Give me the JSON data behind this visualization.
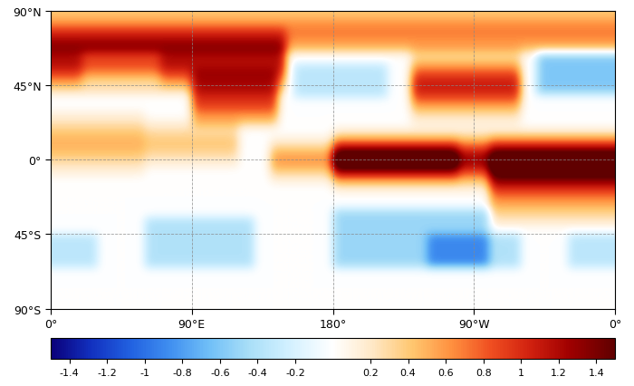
{
  "title": "",
  "colorbar_ticks": [
    -1.4,
    -1.2,
    -1.0,
    -0.8,
    -0.6,
    -0.4,
    -0.2,
    0.2,
    0.4,
    0.6,
    0.8,
    1.0,
    1.2,
    1.4
  ],
  "colorbar_tick_labels": [
    "-1.4",
    "-1.2",
    "-1",
    "-0.8",
    "-0.6",
    "-0.4",
    "-0.2",
    "0.2",
    "0.4",
    "0.6",
    "0.8",
    "1",
    "1.2",
    "1.4"
  ],
  "vmin": -1.5,
  "vmax": 1.5,
  "background_color": "#ffffff",
  "grid_color": "#888888",
  "coastline_color": "#000000",
  "cmap_nodes": [
    [
      0.0,
      [
        0.04,
        0.0,
        0.48
      ]
    ],
    [
      0.07,
      [
        0.07,
        0.19,
        0.75
      ]
    ],
    [
      0.14,
      [
        0.13,
        0.38,
        0.88
      ]
    ],
    [
      0.21,
      [
        0.25,
        0.56,
        0.94
      ]
    ],
    [
      0.28,
      [
        0.44,
        0.75,
        0.97
      ]
    ],
    [
      0.35,
      [
        0.66,
        0.87,
        0.97
      ]
    ],
    [
      0.42,
      [
        0.82,
        0.94,
        1.0
      ]
    ],
    [
      0.5,
      [
        1.0,
        1.0,
        1.0
      ]
    ],
    [
      0.57,
      [
        1.0,
        0.91,
        0.78
      ]
    ],
    [
      0.64,
      [
        1.0,
        0.78,
        0.44
      ]
    ],
    [
      0.71,
      [
        1.0,
        0.57,
        0.25
      ]
    ],
    [
      0.78,
      [
        0.94,
        0.31,
        0.13
      ]
    ],
    [
      0.85,
      [
        0.82,
        0.13,
        0.06
      ]
    ],
    [
      0.92,
      [
        0.63,
        0.0,
        0.0
      ]
    ],
    [
      1.0,
      [
        0.38,
        0.0,
        0.0
      ]
    ]
  ],
  "warm_patches": [
    {
      "lon_min": 180,
      "lon_max": 360,
      "lat_min": -20,
      "lat_max": 20,
      "strength": 1.3,
      "lat_sigma": 12
    },
    {
      "lon_min": 140,
      "lon_max": 260,
      "lat_min": -15,
      "lat_max": 15,
      "strength": 0.6,
      "lat_sigma": 10
    },
    {
      "lon_min": 230,
      "lon_max": 300,
      "lat_min": 20,
      "lat_max": 70,
      "strength": 1.1,
      "lat_sigma": 15
    },
    {
      "lon_min": 280,
      "lon_max": 360,
      "lat_min": -40,
      "lat_max": 15,
      "strength": 0.9,
      "lat_sigma": 20
    },
    {
      "lon_min": 0,
      "lon_max": 150,
      "lat_min": 40,
      "lat_max": 80,
      "strength": 1.2,
      "lat_sigma": 15
    },
    {
      "lon_min": 90,
      "lon_max": 145,
      "lat_min": 20,
      "lat_max": 55,
      "strength": 1.0,
      "lat_sigma": 15
    },
    {
      "lon_min": 0,
      "lon_max": 60,
      "lat_min": -10,
      "lat_max": 30,
      "strength": 0.5,
      "lat_sigma": 15
    },
    {
      "lon_min": 60,
      "lon_max": 120,
      "lat_min": -5,
      "lat_max": 25,
      "strength": 0.4,
      "lat_sigma": 12
    },
    {
      "lon_min": 0,
      "lon_max": 360,
      "lat_min": 65,
      "lat_max": 90,
      "strength": 0.7,
      "lat_sigma": 15
    }
  ],
  "cool_patches": [
    {
      "lon_min": 310,
      "lon_max": 360,
      "lat_min": 40,
      "lat_max": 65,
      "strength": 0.6
    },
    {
      "lon_min": 180,
      "lon_max": 280,
      "lat_min": -65,
      "lat_max": -30,
      "strength": 0.5
    },
    {
      "lon_min": 60,
      "lon_max": 130,
      "lat_min": -65,
      "lat_max": -35,
      "strength": 0.4
    },
    {
      "lon_min": 155,
      "lon_max": 215,
      "lat_min": 38,
      "lat_max": 58,
      "strength": 0.35
    },
    {
      "lon_min": 20,
      "lon_max": 70,
      "lat_min": 45,
      "lat_max": 65,
      "strength": 0.3
    },
    {
      "lon_min": 240,
      "lon_max": 300,
      "lat_min": -65,
      "lat_max": -45,
      "strength": 0.4
    },
    {
      "lon_min": 330,
      "lon_max": 360,
      "lat_min": -65,
      "lat_max": -45,
      "strength": 0.35
    },
    {
      "lon_min": 0,
      "lon_max": 30,
      "lat_min": -65,
      "lat_max": -45,
      "strength": 0.35
    }
  ],
  "smooth_sigma": 6,
  "lon_labels": [
    "0°",
    "90°E",
    "180°",
    "90°W",
    "0°"
  ],
  "lat_labels": [
    "90°N",
    "45°N",
    "0°",
    "45°S",
    "90°S"
  ]
}
